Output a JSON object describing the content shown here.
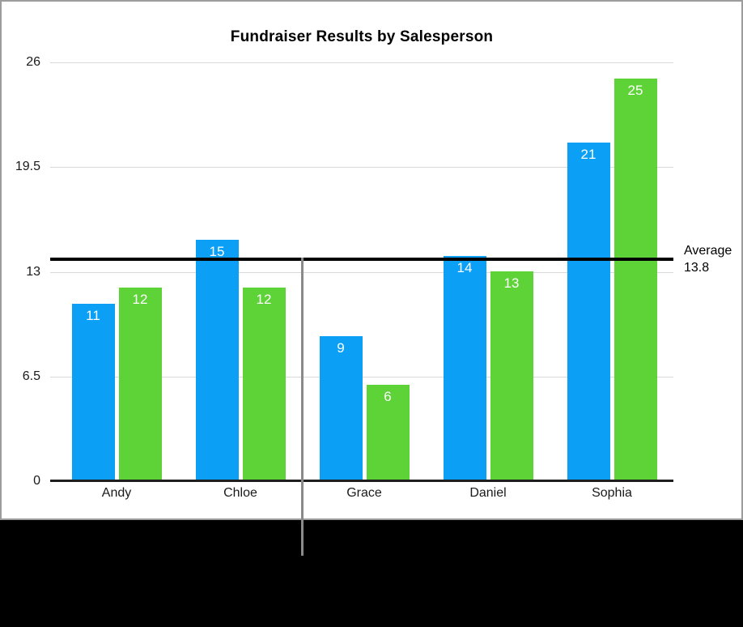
{
  "figure": {
    "panel_background": "#ffffff",
    "panel_border_color": "#9c9c9c",
    "backdrop_color": "#000000",
    "pointer_line_color": "#8a8a8a"
  },
  "chart_data": {
    "type": "bar",
    "title": "Fundraiser Results by Salesperson",
    "categories": [
      "Andy",
      "Chloe",
      "Grace",
      "Daniel",
      "Sophia"
    ],
    "series": [
      {
        "color": "#0BA0F6",
        "values": [
          11,
          15,
          9,
          14,
          21
        ]
      },
      {
        "color": "#5ED338",
        "values": [
          12,
          12,
          6,
          13,
          25
        ]
      }
    ],
    "ylim": [
      0,
      26
    ],
    "y_ticks": [
      0,
      6.5,
      13,
      19.5,
      26
    ],
    "grid": true,
    "legend": "none",
    "bar_value_labels_shown": true,
    "grid_color": "#d9d9d9",
    "axis_color": "#1e1e1e",
    "average_line": {
      "value": 13.8,
      "label": "Average",
      "value_label": "13.8",
      "color": "#000000"
    }
  }
}
